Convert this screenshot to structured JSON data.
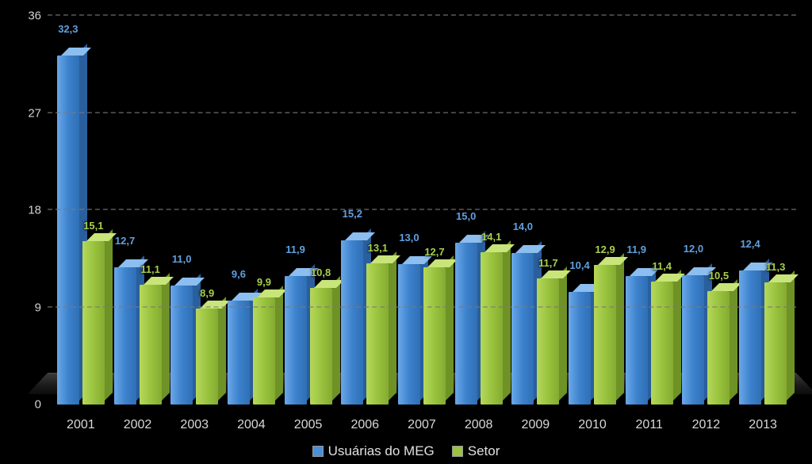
{
  "chart": {
    "type": "bar-3d-grouped",
    "background_color": "#000000",
    "text_color": "#d8d8d8",
    "label_fontsize": 13,
    "axis_fontsize": 15,
    "x_fontsize": 16,
    "legend_fontsize": 17,
    "grid_color": "#7a7a7a",
    "grid_dash": true,
    "floor_colors": [
      "#3a3a3a",
      "#1a1a1a",
      "#0c0c0c"
    ],
    "ylim": [
      0,
      36
    ],
    "yticks": [
      0,
      9,
      18,
      27,
      36
    ],
    "categories": [
      "2001",
      "2002",
      "2003",
      "2004",
      "2005",
      "2006",
      "2007",
      "2008",
      "2009",
      "2010",
      "2011",
      "2012",
      "2013"
    ],
    "series": [
      {
        "name": "Usuárias do MEG",
        "color_front": "linear-gradient(to right, #6aa8e8 0%, #3d82cd 50%, #2f6fb5 100%)",
        "color_top": "#8cbef0",
        "color_side": "#2a5f9e",
        "label_color": "#5fa0e0",
        "swatch_color": "#4b8fd6",
        "values": [
          32.3,
          12.7,
          11.0,
          9.6,
          11.9,
          15.2,
          13.0,
          15.0,
          14.0,
          10.4,
          11.9,
          12.0,
          12.4
        ],
        "labels": [
          "32,3",
          "12,7",
          "11,0",
          "9,6",
          "11,9",
          "15,2",
          "13,0",
          "15,0",
          "14,0",
          "10,4",
          "11,9",
          "12,0",
          "12,4"
        ]
      },
      {
        "name": "Setor",
        "color_front": "linear-gradient(to right, #b6d85a 0%, #9ac33f 50%, #84ab30 100%)",
        "color_top": "#c8e57a",
        "color_side": "#6f9226",
        "label_color": "#a8cf4a",
        "swatch_color": "#9ac33f",
        "values": [
          15.1,
          11.1,
          8.9,
          9.9,
          10.8,
          13.1,
          12.7,
          14.1,
          11.7,
          12.9,
          11.4,
          10.5,
          11.3
        ],
        "labels": [
          "15,1",
          "11,1",
          "8,9",
          "9,9",
          "10,8",
          "13,1",
          "12,7",
          "14,1",
          "11,7",
          "12,9",
          "11,4",
          "10,5",
          "11,3"
        ]
      }
    ]
  }
}
